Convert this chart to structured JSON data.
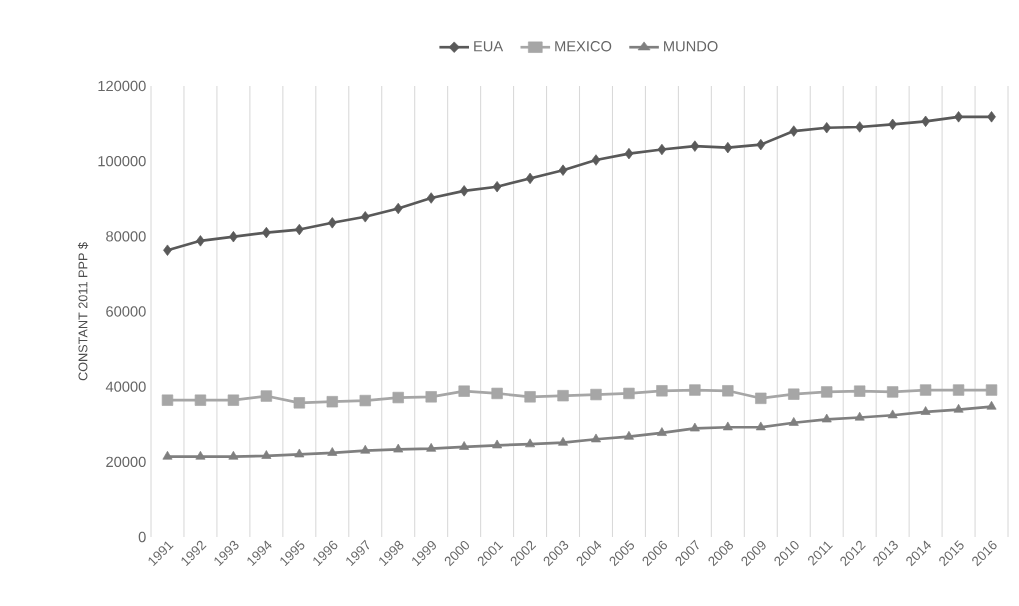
{
  "chart_data": {
    "type": "line",
    "ylabel": "CONSTANT 2011 PPP $",
    "categories": [
      "1991",
      "1992",
      "1993",
      "1994",
      "1995",
      "1996",
      "1997",
      "1998",
      "1999",
      "2000",
      "2001",
      "2002",
      "2003",
      "2004",
      "2005",
      "2006",
      "2007",
      "2008",
      "2009",
      "2010",
      "2011",
      "2012",
      "2013",
      "2014",
      "2015",
      "2016"
    ],
    "series": [
      {
        "name": "EUA",
        "color": "#595959",
        "marker": "diamond",
        "values": [
          76300,
          78800,
          79900,
          81000,
          81800,
          83600,
          85200,
          87400,
          90200,
          92100,
          93200,
          95400,
          97600,
          100300,
          102000,
          103100,
          104000,
          103600,
          104400,
          108000,
          108900,
          109100,
          109800,
          110600,
          111800,
          111800
        ]
      },
      {
        "name": "MEXICO",
        "color": "#a6a6a6",
        "marker": "square",
        "values": [
          36400,
          36400,
          36400,
          37500,
          35700,
          36000,
          36300,
          37100,
          37300,
          38800,
          38200,
          37300,
          37600,
          37900,
          38200,
          38900,
          39100,
          38900,
          36900,
          38000,
          38600,
          38800,
          38600,
          39100,
          39100,
          39100
        ]
      },
      {
        "name": "MUNDO",
        "color": "#7f7f7f",
        "marker": "triangle",
        "values": [
          21400,
          21400,
          21400,
          21600,
          22000,
          22400,
          23000,
          23300,
          23500,
          24000,
          24400,
          24700,
          25100,
          26000,
          26700,
          27700,
          28900,
          29200,
          29200,
          30400,
          31300,
          31800,
          32400,
          33300,
          33900,
          34700
        ]
      }
    ],
    "ylim": [
      0,
      120000
    ],
    "yticks": [
      0,
      20000,
      40000,
      60000,
      80000,
      100000,
      120000
    ],
    "grid": "x",
    "legend": "top",
    "line_style": "solid"
  }
}
